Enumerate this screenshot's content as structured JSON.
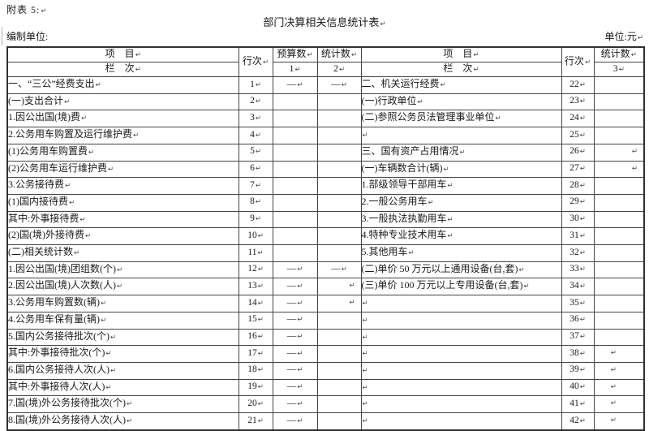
{
  "header": {
    "appendix": "附表 5:",
    "title": "部门决算相关信息统计表",
    "prepared_by": "编制单位:",
    "unit": "单位:元"
  },
  "marks": {
    "pilcrow": "↵",
    "dash": "—"
  },
  "theme": {
    "text": "#1a1a1a",
    "border": "#454545",
    "background": "#ffffff"
  },
  "table": {
    "headers": {
      "item": "项　目",
      "column": "栏　次",
      "line_no": "行次",
      "budget": "预算数",
      "stat": "统计数",
      "col_1": "1",
      "col_2": "2",
      "col_3": "3"
    },
    "left_rows": [
      {
        "label": "一、“三公”经费支出",
        "indent": 0,
        "line": "1",
        "budget": "—",
        "stat": "—",
        "stat_mark": ""
      },
      {
        "label": "(一)支出合计",
        "indent": 1,
        "line": "2",
        "budget": "",
        "stat": "",
        "stat_mark": ""
      },
      {
        "label": "1.因公出国(境)费",
        "indent": 2,
        "line": "3",
        "budget": "",
        "stat": "",
        "stat_mark": ""
      },
      {
        "label": "2.公务用车购置及运行维护费",
        "indent": 2,
        "line": "4",
        "budget": "",
        "stat": "",
        "stat_mark": ""
      },
      {
        "label": "(1)公务用车购置费",
        "indent": 3,
        "line": "5",
        "budget": "",
        "stat": "",
        "stat_mark": ""
      },
      {
        "label": "(2)公务用车运行维护费",
        "indent": 3,
        "line": "6",
        "budget": "",
        "stat": "",
        "stat_mark": ""
      },
      {
        "label": "3.公务接待费",
        "indent": 2,
        "line": "7",
        "budget": "",
        "stat": "",
        "stat_mark": ""
      },
      {
        "label": "(1)国内接待费",
        "indent": 3,
        "line": "8",
        "budget": "",
        "stat": "",
        "stat_mark": ""
      },
      {
        "label": "其中:外事接待费",
        "indent": 5,
        "line": "9",
        "budget": "",
        "stat": "",
        "stat_mark": ""
      },
      {
        "label": "(2)国(境)外接待费",
        "indent": 3,
        "line": "10",
        "budget": "",
        "stat": "",
        "stat_mark": ""
      },
      {
        "label": "(二)相关统计数",
        "indent": 1,
        "line": "11",
        "budget": "",
        "stat": "",
        "stat_mark": ""
      },
      {
        "label": "1.因公出国(境)团组数(个)",
        "indent": 2,
        "line": "12",
        "budget": "—",
        "stat": "—",
        "stat_mark": ""
      },
      {
        "label": "2.因公出国(境)人次数(人)",
        "indent": 2,
        "line": "13",
        "budget": "—",
        "stat": "",
        "stat_mark": "r"
      },
      {
        "label": "3.公务用车购置数(辆)",
        "indent": 2,
        "line": "14",
        "budget": "—",
        "stat": "",
        "stat_mark": "r"
      },
      {
        "label": "4.公务用车保有量(辆)",
        "indent": 2,
        "line": "15",
        "budget": "—",
        "stat": "",
        "stat_mark": ""
      },
      {
        "label": "5.国内公务接待批次(个)",
        "indent": 2,
        "line": "16",
        "budget": "—",
        "stat": "",
        "stat_mark": ""
      },
      {
        "label": "其中:外事接待批次(个)",
        "indent": 4,
        "line": "17",
        "budget": "—",
        "stat": "",
        "stat_mark": ""
      },
      {
        "label": "6.国内公务接待人次(人)",
        "indent": 2,
        "line": "18",
        "budget": "—",
        "stat": "",
        "stat_mark": ""
      },
      {
        "label": "其中:外事接待人次(人)",
        "indent": 4,
        "line": "19",
        "budget": "—",
        "stat": "",
        "stat_mark": ""
      },
      {
        "label": "7.国(境)外公务接待批次(个)",
        "indent": 2,
        "line": "20",
        "budget": "—",
        "stat": "",
        "stat_mark": ""
      },
      {
        "label": "8.国(境)外公务接待人次(人)",
        "indent": 2,
        "line": "21",
        "budget": "—",
        "stat": "",
        "stat_mark": ""
      }
    ],
    "right_rows": [
      {
        "label": "二、机关运行经费",
        "indent": 0,
        "line": "22",
        "stat": "",
        "stat_mark": ""
      },
      {
        "label": "(一)行政单位",
        "indent": 1,
        "line": "23",
        "stat": "",
        "stat_mark": ""
      },
      {
        "label": "(二)参照公务员法管理事业单位",
        "indent": 1,
        "line": "24",
        "stat": "",
        "stat_mark": ""
      },
      {
        "label": "",
        "indent": 1,
        "line": "25",
        "stat": "",
        "stat_mark": ""
      },
      {
        "label": "三、国有资产占用情况",
        "indent": 0,
        "line": "26",
        "stat": "",
        "stat_mark": "r"
      },
      {
        "label": "(一)车辆数合计(辆)",
        "indent": 1,
        "line": "27",
        "stat": "",
        "stat_mark": "r"
      },
      {
        "label": "1.部级领导干部用车",
        "indent": 2,
        "line": "28",
        "stat": "",
        "stat_mark": ""
      },
      {
        "label": "2.一般公务用车",
        "indent": 2,
        "line": "29",
        "stat": "",
        "stat_mark": ""
      },
      {
        "label": "3.一般执法执勤用车",
        "indent": 2,
        "line": "30",
        "stat": "",
        "stat_mark": ""
      },
      {
        "label": "4.特种专业技术用车",
        "indent": 2,
        "line": "31",
        "stat": "",
        "stat_mark": ""
      },
      {
        "label": "5.其他用车",
        "indent": 2,
        "line": "32",
        "stat": "",
        "stat_mark": ""
      },
      {
        "label": "(二)单价 50 万元以上通用设备(台,套)",
        "indent": 1,
        "line": "33",
        "stat": "",
        "stat_mark": ""
      },
      {
        "label": "(三)单价 100 万元以上专用设备(台,套)",
        "indent": 1,
        "line": "34",
        "stat": "",
        "stat_mark": ""
      },
      {
        "label": "",
        "indent": 1,
        "line": "35",
        "stat": "",
        "stat_mark": ""
      },
      {
        "label": "",
        "indent": 1,
        "line": "36",
        "stat": "",
        "stat_mark": ""
      },
      {
        "label": "",
        "indent": 1,
        "line": "37",
        "stat": "",
        "stat_mark": ""
      },
      {
        "label": "",
        "indent": 1,
        "line": "38",
        "stat": "",
        "stat_mark": "c"
      },
      {
        "label": "",
        "indent": 1,
        "line": "39",
        "stat": "",
        "stat_mark": "c"
      },
      {
        "label": "",
        "indent": 1,
        "line": "40",
        "stat": "",
        "stat_mark": "c"
      },
      {
        "label": "",
        "indent": 1,
        "line": "41",
        "stat": "",
        "stat_mark": "c"
      },
      {
        "label": "",
        "indent": 1,
        "line": "42",
        "stat": "",
        "stat_mark": "c"
      }
    ]
  }
}
